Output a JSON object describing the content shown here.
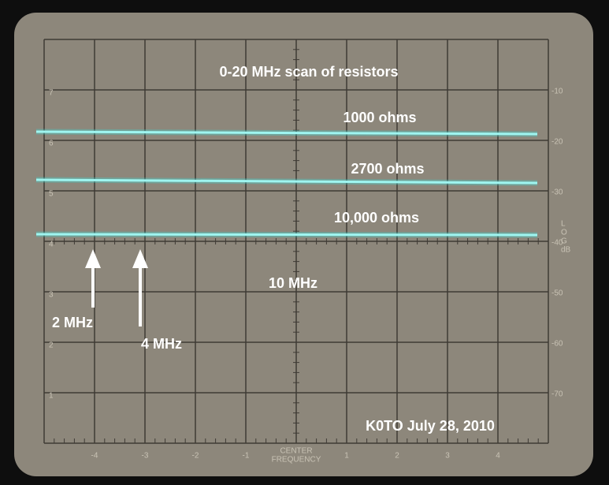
{
  "title": "0-20 MHz scan of resistors",
  "traces": [
    {
      "label": "1000 ohms"
    },
    {
      "label": "2700 ohms"
    },
    {
      "label": "10,000 ohms"
    }
  ],
  "markers": [
    {
      "label": "2 MHz"
    },
    {
      "label": "4 MHz"
    }
  ],
  "center_label": "10 MHz",
  "credit": "K0TO July 28, 2010",
  "graticule": {
    "left_labels": [
      "7",
      "6",
      "5",
      "4",
      "3",
      "2",
      "1"
    ],
    "right_labels": [
      "-10",
      "-20",
      "-30",
      "-40",
      "-50",
      "-60",
      "-70"
    ],
    "right_axis_label": [
      "L",
      "O",
      "G",
      "dB"
    ],
    "bottom_labels": [
      "-4",
      "-3",
      "-2",
      "-1",
      "1",
      "2",
      "3",
      "4"
    ],
    "center_caption": [
      "CENTER",
      "FREQUENCY"
    ]
  }
}
